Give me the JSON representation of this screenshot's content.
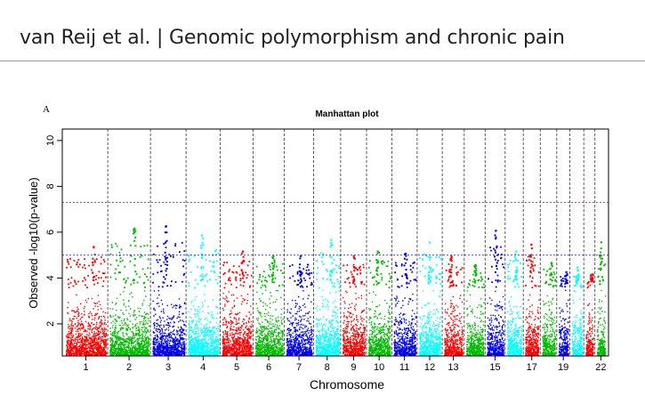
{
  "header": {
    "text": "van Reij et al.  |  Genomic polymorphism and chronic pain"
  },
  "figure": {
    "panel_label": "A"
  },
  "chart_data": {
    "type": "scatter",
    "title": "Manhattan plot",
    "xlabel": "Chromosome",
    "ylabel": "Observed -log10(p-value)",
    "ylim": [
      0.6,
      10.5
    ],
    "yticks": [
      2,
      4,
      6,
      8,
      10
    ],
    "xtick_labels": [
      "1",
      "2",
      "3",
      "4",
      "5",
      "6",
      "7",
      "8",
      "9",
      "10",
      "11",
      "12",
      "13",
      "15",
      "17",
      "19",
      "22"
    ],
    "genome_wide_threshold": 7.3,
    "suggestive_threshold": 5.0,
    "threshold_colors": {
      "genome_wide": "#cc3333",
      "suggestive": "#3333cc"
    },
    "grid": "vertical dashed lines between chromosomes",
    "chromosomes": [
      {
        "chr": "1",
        "color": "#ff0000",
        "max": 5.4
      },
      {
        "chr": "2",
        "color": "#00bb00",
        "max": 6.2
      },
      {
        "chr": "3",
        "color": "#0000ee",
        "max": 6.3
      },
      {
        "chr": "4",
        "color": "#00ffff",
        "max": 5.9
      },
      {
        "chr": "5",
        "color": "#ff0000",
        "max": 5.2
      },
      {
        "chr": "6",
        "color": "#00bb00",
        "max": 5.0
      },
      {
        "chr": "7",
        "color": "#0000ee",
        "max": 5.0
      },
      {
        "chr": "8",
        "color": "#00ffff",
        "max": 5.7
      },
      {
        "chr": "9",
        "color": "#ff0000",
        "max": 5.0
      },
      {
        "chr": "10",
        "color": "#00bb00",
        "max": 5.2
      },
      {
        "chr": "11",
        "color": "#0000ee",
        "max": 5.1
      },
      {
        "chr": "12",
        "color": "#00ffff",
        "max": 5.6
      },
      {
        "chr": "13",
        "color": "#ff0000",
        "max": 5.0
      },
      {
        "chr": "14",
        "color": "#00bb00",
        "max": 4.6
      },
      {
        "chr": "15",
        "color": "#0000ee",
        "max": 6.1
      },
      {
        "chr": "16",
        "color": "#00ffff",
        "max": 5.2
      },
      {
        "chr": "17",
        "color": "#ff0000",
        "max": 5.5
      },
      {
        "chr": "18",
        "color": "#00bb00",
        "max": 4.7
      },
      {
        "chr": "19",
        "color": "#0000ee",
        "max": 4.3
      },
      {
        "chr": "20",
        "color": "#00ffff",
        "max": 4.5
      },
      {
        "chr": "21",
        "color": "#ff0000",
        "max": 4.2
      },
      {
        "chr": "22",
        "color": "#00bb00",
        "max": 5.6
      }
    ]
  }
}
